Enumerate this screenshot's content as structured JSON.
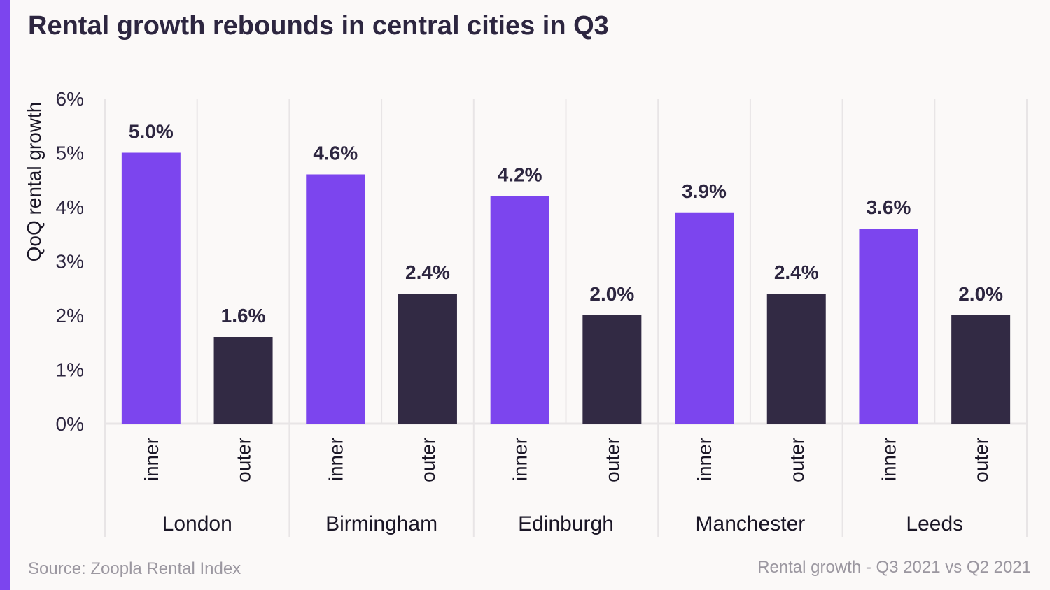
{
  "title": "Rental growth rebounds in central cities in Q3",
  "footer": {
    "source": "Source: Zoopla Rental Index",
    "note": "Rental growth - Q3 2021 vs Q2 2021"
  },
  "colors": {
    "accent": "#7c45ee",
    "inner": "#7c45ee",
    "outer": "#322a44",
    "background": "#fbf9f8",
    "grid": "#e8e5e6"
  },
  "chart_data": {
    "type": "bar",
    "title": "Rental growth rebounds in central cities in Q3",
    "ylabel": "QoQ rental growth",
    "xlabel": "",
    "ylim": [
      0,
      6
    ],
    "yticks": [
      0,
      1,
      2,
      3,
      4,
      5,
      6
    ],
    "ytick_suffix": "%",
    "categories": [
      "London",
      "Birmingham",
      "Edinburgh",
      "Manchester",
      "Leeds"
    ],
    "subcategories": [
      "inner",
      "outer"
    ],
    "series": [
      {
        "name": "inner",
        "values": [
          5.0,
          4.6,
          4.2,
          3.9,
          3.6
        ]
      },
      {
        "name": "outer",
        "values": [
          1.6,
          2.4,
          2.0,
          2.4,
          2.0
        ]
      }
    ],
    "data_labels": [
      [
        "5.0%",
        "1.6%"
      ],
      [
        "4.6%",
        "2.4%"
      ],
      [
        "4.2%",
        "2.0%"
      ],
      [
        "3.9%",
        "2.4%"
      ],
      [
        "3.6%",
        "2.0%"
      ]
    ],
    "grid": true
  }
}
